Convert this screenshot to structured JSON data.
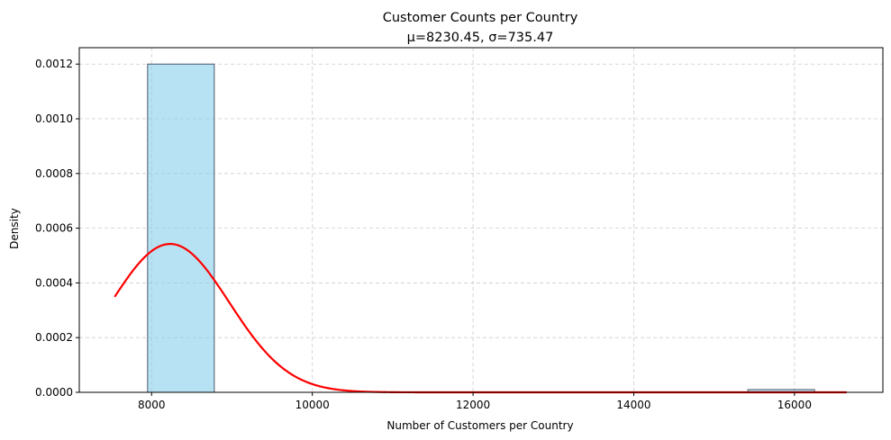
{
  "chart_data": {
    "type": "histogram",
    "title": "Customer Counts per Country",
    "subtitle": "μ=8230.45, σ=735.47",
    "xlabel": "Number of Customers per Country",
    "ylabel": "Density",
    "xlim": [
      7100,
      17100
    ],
    "ylim": [
      0,
      0.00126
    ],
    "x_ticks": [
      8000,
      10000,
      12000,
      14000,
      16000
    ],
    "x_tick_labels": [
      "8000",
      "10000",
      "12000",
      "14000",
      "16000"
    ],
    "y_ticks": [
      0,
      0.0002,
      0.0004,
      0.0006,
      0.0008,
      0.001,
      0.0012
    ],
    "y_tick_labels": [
      "0.0000",
      "0.0002",
      "0.0004",
      "0.0006",
      "0.0008",
      "0.0010",
      "0.0012"
    ],
    "grid": true,
    "bins": [
      {
        "x0": 7950,
        "x1": 8780,
        "density": 0.0012
      },
      {
        "x0": 15420,
        "x1": 16250,
        "density": 1e-05
      }
    ],
    "curve": {
      "kind": "normal-pdf",
      "mean": 8230.45,
      "std": 735.47,
      "x_start": 7540,
      "x_end": 16650
    },
    "colors": {
      "bar_fill": "#87ceeb",
      "bar_edge": "#4a5a6a",
      "curve": "#ff0000",
      "grid": "#cccccc",
      "axis": "#000000"
    }
  }
}
